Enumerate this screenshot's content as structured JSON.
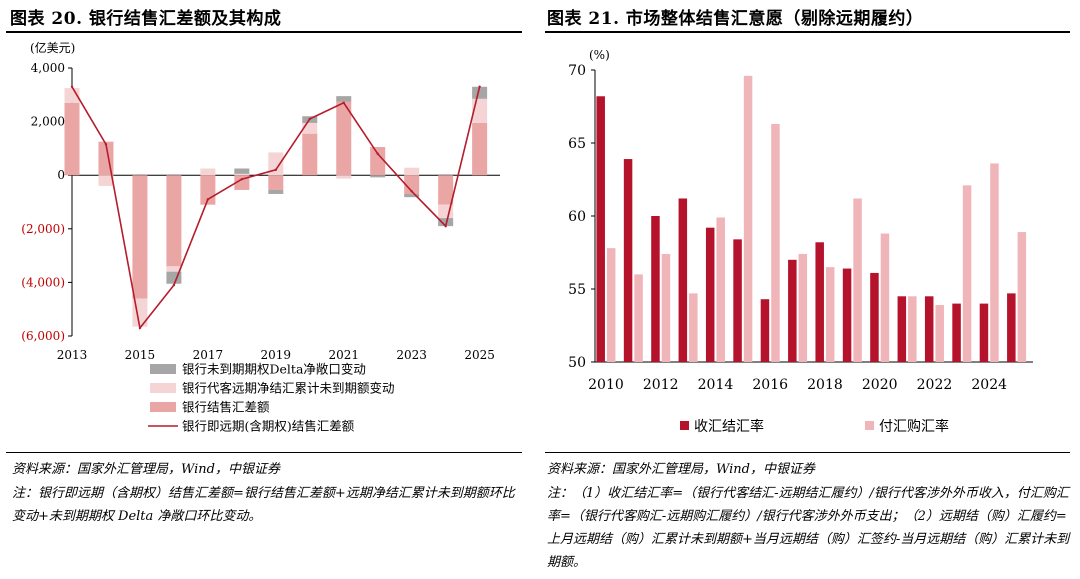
{
  "left": {
    "title": "图表 20. 银行结售汇差额及其构成",
    "source": "资料来源：国家外汇管理局，Wind，中银证券",
    "note": "注：银行即远期（含期权）结售汇差额=银行结售汇差额+远期净结汇累计未到期额环比变动+未到期期权 Delta 净敞口环比变动。",
    "colors": {
      "delta": "#a6a6a6",
      "forward": "#f4d4d4",
      "spot": "#eaa5a5",
      "line": "#b51c2c",
      "negative_label": "#c00000"
    },
    "chart_data": {
      "type": "bar",
      "stacked": true,
      "unit_label": "(亿美元)",
      "ylim": [
        -6000,
        4000
      ],
      "yticks": [
        4000,
        2000,
        0,
        -2000,
        -4000,
        -6000
      ],
      "ytick_labels": [
        "4,000",
        "2,000",
        "0",
        "(2,000)",
        "(4,000)",
        "(6,000)"
      ],
      "x_range": [
        2013,
        2025.6
      ],
      "xticks": [
        2013,
        2015,
        2017,
        2019,
        2021,
        2023,
        2025
      ],
      "xtick_labels": [
        "2013",
        "2015",
        "2017",
        "2019",
        "2021",
        "2023",
        "2025"
      ],
      "x": [
        2013,
        2014,
        2015,
        2016,
        2017,
        2018,
        2019,
        2020,
        2021,
        2022,
        2023,
        2024,
        2025
      ],
      "series": [
        {
          "name": "银行未到期期权Delta净敞口变动",
          "key": "delta",
          "values": [
            0,
            0,
            0,
            -450,
            0,
            200,
            -150,
            250,
            200,
            -80,
            -120,
            -300,
            450
          ]
        },
        {
          "name": "银行代客远期净结汇累计未到期额变动",
          "key": "forward",
          "values": [
            550,
            -400,
            -1050,
            -200,
            250,
            50,
            850,
            400,
            -130,
            0,
            280,
            -500,
            900
          ]
        },
        {
          "name": "银行结售汇差额",
          "key": "spot",
          "values": [
            2700,
            1250,
            -4600,
            -3400,
            -1100,
            -550,
            -550,
            1550,
            2750,
            1050,
            -700,
            -1100,
            1950
          ]
        },
        {
          "name": "银行即远期(含期权)结售汇差额",
          "key": "line",
          "type": "line",
          "values": [
            3300,
            1150,
            -5700,
            -4100,
            -900,
            -150,
            200,
            2100,
            2700,
            800,
            -600,
            -1900,
            3300
          ]
        }
      ]
    }
  },
  "right": {
    "title": "图表 21. 市场整体结售汇意愿（剔除远期履约）",
    "source": "资料来源：国家外汇管理局，Wind，中银证券",
    "note": "注：（1）收汇结汇率=（银行代客结汇-远期结汇履约）/银行代客涉外外币收入，付汇购汇率=（银行代客购汇-远期购汇履约）/银行代客涉外外币支出；（2）远期结（购）汇履约=上月远期结（购）汇累计未到期额+当月远期结（购）汇签约-当月远期结（购）汇累计未到期额。",
    "colors": {
      "settle": "#b5122c",
      "purchase": "#f0b5b8"
    },
    "chart_data": {
      "type": "bar",
      "unit_label": "(%)",
      "ylim": [
        50,
        70
      ],
      "yticks": [
        70,
        65,
        60,
        55,
        50
      ],
      "ytick_labels": [
        "70",
        "65",
        "60",
        "55",
        "50"
      ],
      "x_range": [
        2009.6,
        2025.6
      ],
      "xticks": [
        2010,
        2012,
        2014,
        2016,
        2018,
        2020,
        2022,
        2024
      ],
      "xtick_labels": [
        "2010",
        "2012",
        "2014",
        "2016",
        "2018",
        "2020",
        "2022",
        "2024"
      ],
      "x": [
        2010,
        2011,
        2012,
        2013,
        2014,
        2015,
        2016,
        2017,
        2018,
        2019,
        2020,
        2021,
        2022,
        2023,
        2024,
        2025
      ],
      "series": [
        {
          "name": "收汇结汇率",
          "key": "settle",
          "values": [
            68.2,
            63.9,
            60.0,
            61.2,
            59.2,
            58.4,
            54.3,
            57.0,
            58.2,
            56.4,
            56.1,
            54.5,
            54.5,
            54.0,
            54.0,
            54.7
          ]
        },
        {
          "name": "付汇购汇率",
          "key": "purchase",
          "values": [
            57.8,
            56.0,
            57.4,
            54.7,
            59.9,
            69.6,
            66.3,
            57.4,
            56.5,
            61.2,
            58.8,
            54.5,
            53.9,
            62.1,
            63.6,
            58.9
          ]
        }
      ]
    }
  }
}
